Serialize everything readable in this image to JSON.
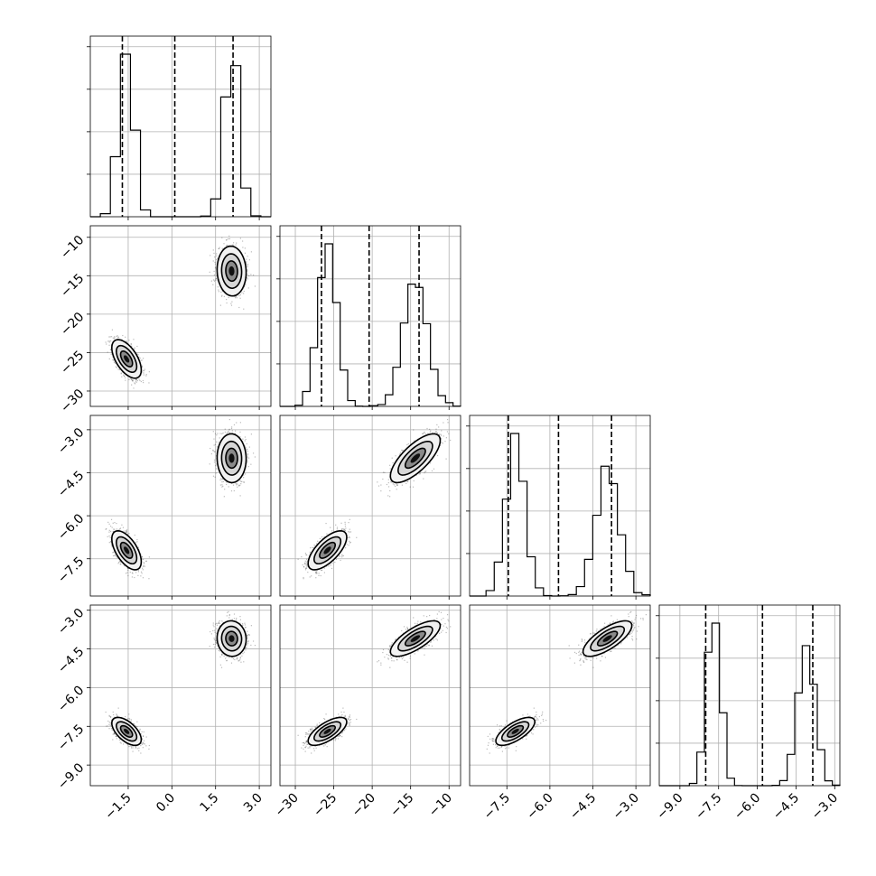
{
  "chart_data": {
    "type": "scatter",
    "title": "",
    "kind": "corner plot",
    "grid": true,
    "panel_size": 4,
    "histogram_color": "#000000",
    "quantile_line_style": "dashed",
    "parameters": [
      {
        "range": [
          -2.8,
          3.4
        ],
        "ticks": [
          -1.5,
          0.0,
          1.5,
          3.0
        ],
        "tick_labels": [
          "−1.5",
          "0.0",
          "1.5",
          "3.0"
        ],
        "quantiles": [
          -1.7,
          0.1,
          2.1
        ],
        "modes": [
          {
            "center": -1.55,
            "sd": 0.24
          },
          {
            "center": 2.05,
            "sd": 0.24
          }
        ],
        "hist_bins": 18
      },
      {
        "range": [
          -32,
          -8.5
        ],
        "ticks": [
          -30,
          -25,
          -20,
          -15,
          -10
        ],
        "tick_labels": [
          "−30",
          "−25",
          "−20",
          "−15",
          "−10"
        ],
        "quantiles": [
          -26.6,
          -20.4,
          -13.9
        ],
        "modes": [
          {
            "center": -25.8,
            "sd": 1.5
          },
          {
            "center": -14.4,
            "sd": 1.5
          }
        ],
        "hist_bins": 24
      },
      {
        "range": [
          -8.8,
          -2.5
        ],
        "ticks": [
          -7.5,
          -6.0,
          -4.5,
          -3.0
        ],
        "tick_labels": [
          "−7.5",
          "−6.0",
          "−4.5",
          "−3.0"
        ],
        "quantiles": [
          -7.45,
          -5.7,
          -3.85
        ],
        "modes": [
          {
            "center": -7.2,
            "sd": 0.4
          },
          {
            "center": -4.0,
            "sd": 0.4
          }
        ],
        "hist_bins": 22
      },
      {
        "range": [
          -9.8,
          -2.8
        ],
        "ticks": [
          -9.0,
          -7.5,
          -6.0,
          -4.5,
          -3.0
        ],
        "tick_labels": [
          "−9.0",
          "−7.5",
          "−6.0",
          "−4.5",
          "−3.0"
        ],
        "quantiles": [
          -8.0,
          -5.8,
          -3.85
        ],
        "modes": [
          {
            "center": -7.7,
            "sd": 0.32
          },
          {
            "center": -4.1,
            "sd": 0.32
          }
        ],
        "hist_bins": 24
      }
    ],
    "pairs": [
      {
        "x_param": 0,
        "y_param": 1,
        "correlation_by_mode": [
          -0.6,
          0.0
        ]
      },
      {
        "x_param": 0,
        "y_param": 2,
        "correlation_by_mode": [
          -0.6,
          0.0
        ]
      },
      {
        "x_param": 0,
        "y_param": 3,
        "correlation_by_mode": [
          -0.5,
          0.0
        ]
      },
      {
        "x_param": 1,
        "y_param": 2,
        "correlation_by_mode": [
          0.8,
          0.75
        ]
      },
      {
        "x_param": 1,
        "y_param": 3,
        "correlation_by_mode": [
          0.75,
          0.6
        ]
      },
      {
        "x_param": 2,
        "y_param": 3,
        "correlation_by_mode": [
          0.8,
          0.8
        ]
      }
    ]
  }
}
